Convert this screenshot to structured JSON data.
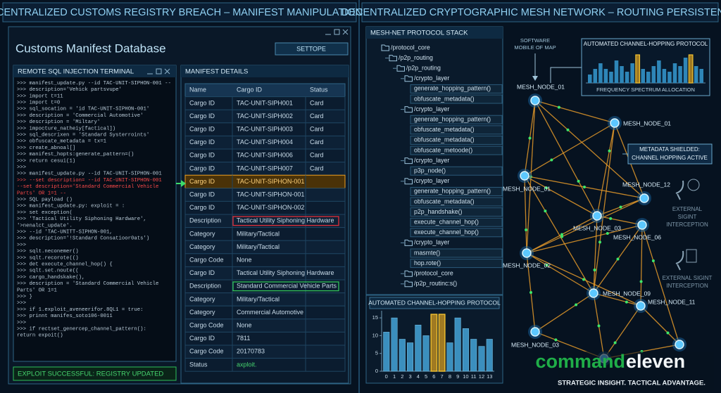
{
  "left_title": "CENTRALIZED CUSTOMS REGISTRY BREACH – MANIFEST MANIPULATION",
  "right_title": "DECENTRALIZED CRYPTOGRAPHIC MESH NETWORK – ROUTING PERSISTENCE",
  "window": {
    "title": "Customs Manifest Database",
    "button": "SETTOPE"
  },
  "terminal": {
    "title": "REMOTE SQL INJECTION TERMINAL",
    "lines": [
      {
        "text": ">>> manifest_update.py --id TAC-UNIT-SIPHON-001 --"
      },
      {
        "text": ">>> description='Vehick partsvupe'"
      },
      {
        "text": ">>> import t=11"
      },
      {
        "text": ">>> import t=0"
      },
      {
        "text": ">>> sql_socation = 'id TAC-UNIT-SIPHON-001'"
      },
      {
        "text": ">>> description = 'Commercial Automotive'"
      },
      {
        "text": ">>> description = 'Miltary'"
      },
      {
        "text": ">>> impocture_natheiy[factical])"
      },
      {
        "text": ">>> sql_descrixen = 'Standard Systerroints'"
      },
      {
        "text": ">>> obfuscate_metadata = tx=1"
      },
      {
        "text": ">>> create_abnoal[]"
      },
      {
        "text": ">>> manifest_hopts:generate_pattern=()"
      },
      {
        "text": ">>> return cesui(1)"
      },
      {
        "text": ">>>"
      },
      {
        "text": ">>> manifest_update.py --id TAC-UNIT-SIPHON-001"
      },
      {
        "text": ">>> --set description=  --id TAC-UNIT-SIPHON-001",
        "color": "#ff4a4a"
      },
      {
        "text": "  --set description='Standard Commercial Vehicle",
        "color": "#ff4a4a"
      },
      {
        "text": "   Parts' OR 1=1 --",
        "color": "#ff4a4a"
      },
      {
        "text": ">>> SQL payload ()"
      },
      {
        "text": ">>> manifest_update.py: exploit =  :"
      },
      {
        "text": ">>> set exception("
      },
      {
        "text": ">>>   'Tactical Utility Siphoning Hardware',"
      },
      {
        "text": "'>nenalct_update'."
      },
      {
        "text": ">>>     --id 'TAC-UNITT-SIPHON-001,"
      },
      {
        "text": ">>>     description='!Standard Consatioor0ats')"
      },
      {
        "text": ">>>"
      },
      {
        "text": ">>> sqlt.neconemer()"
      },
      {
        "text": ">>> sqlt.recorote(()"
      },
      {
        "text": ">>> det execute_channel_hop() {"
      },
      {
        "text": ">>> sqlt.set.noute(("
      },
      {
        "text": ">>>     cargo_handskake(),"
      },
      {
        "text": ">>>     description = 'Standard Commercial Vehicle"
      },
      {
        "text": "Parts' OR 1=1"
      },
      {
        "text": ">>> }"
      },
      {
        "text": ">>>"
      },
      {
        "text": ">>> if 1.exploit_aveneerifor.8QL1 = true:"
      },
      {
        "text": ">>>   prinnt manifes_soto106-0011"
      },
      {
        "text": ">>>"
      },
      {
        "text": ">>> if rectset_genercep_channel_pattern():"
      },
      {
        "text": "    return expoit()"
      }
    ],
    "status": "EXPLOIT SUCCESSFUL: REGISTRY UPDATED"
  },
  "manifest": {
    "title": "MANIFEST DETAILS",
    "columns": [
      "Name",
      "Cargo ID",
      "Status"
    ],
    "rows": [
      {
        "cells": [
          "Cargo ID",
          "TAC-UNIT-SIPH001",
          "Card"
        ]
      },
      {
        "cells": [
          "Cargo ID",
          "TAC-UNIT-SIPH002",
          "Card"
        ]
      },
      {
        "cells": [
          "Cargo ID",
          "TAC-UNIT-SIPH003",
          "Card"
        ]
      },
      {
        "cells": [
          "Cargo ID",
          "TAC-UNIT-SIPH004",
          "Card"
        ]
      },
      {
        "cells": [
          "Cargo ID",
          "TAC-UNIT-SIPH006",
          "Card"
        ]
      },
      {
        "cells": [
          "Cargo ID",
          "TAC-UNIT-SIPH007",
          "Card"
        ]
      },
      {
        "cells": [
          "Cargo ID",
          "TAC-UNIT-SIPHON-001"
        ],
        "style": "orange"
      },
      {
        "cells": [
          "Cargo ID",
          "TAC-UNIT-SIPHON-001"
        ]
      },
      {
        "cells": [
          "Cargo ID",
          "TAC-UNIT-SIPHON-002"
        ]
      },
      {
        "cells": [
          "Description",
          "Tactical Utility Siphoning Hardware"
        ],
        "style": "red"
      },
      {
        "cells": [
          "Category",
          "Military/Tactical"
        ]
      },
      {
        "cells": [
          "Category",
          "Military/Tactical"
        ]
      },
      {
        "cells": [
          "Cargo Code",
          "None"
        ]
      },
      {
        "cells": [
          "Cargo ID",
          "Tactical Utility Siphoning Hardware"
        ]
      },
      {
        "cells": [
          "Description",
          "Standard Commercial Vehicle Parts"
        ],
        "style": "green"
      },
      {
        "cells": [
          "Category",
          "Military/Tactical"
        ]
      },
      {
        "cells": [
          "Category",
          "Commercial Automotive"
        ]
      },
      {
        "cells": [
          "Cargo Code",
          "None"
        ]
      },
      {
        "cells": [
          "Cargo ID",
          "7811"
        ]
      },
      {
        "cells": [
          "Cargo Code",
          "20170783"
        ]
      },
      {
        "cells": [
          "Status",
          "axploit."
        ],
        "style": "status"
      }
    ]
  },
  "protocol_stack": {
    "title": "MESH-NET PROTOCOL STACK",
    "tree": [
      {
        "label": "/protocol_core",
        "children": [
          {
            "label": "/p2p_routing",
            "children": [
              {
                "label": "/p2p_routing",
                "children": [
                  {
                    "label": "/crypto_layer",
                    "children": [
                      {
                        "label": "generate_hopping_pattern()"
                      },
                      {
                        "label": "obfuscate_metadata()"
                      }
                    ]
                  },
                  {
                    "label": "/crypto_layer",
                    "children": [
                      {
                        "label": "generate_hopping_pattern()"
                      },
                      {
                        "label": "obfuscate_metadata()"
                      },
                      {
                        "label": "obfuscate_metadata()"
                      },
                      {
                        "label": "obfuscate_metoode()"
                      }
                    ]
                  },
                  {
                    "label": "/crypto_layer",
                    "children": [
                      {
                        "label": "p3p_node()"
                      }
                    ]
                  },
                  {
                    "label": "/crypto_layer",
                    "children": [
                      {
                        "label": "generate_hopping_pattern()"
                      },
                      {
                        "label": "obfuscate_metadata()"
                      },
                      {
                        "label": "p2p_handshake()"
                      },
                      {
                        "label": "execute_channel_hop()"
                      },
                      {
                        "label": "execute_channel_hop()"
                      }
                    ]
                  },
                  {
                    "label": "/crypto_layer",
                    "children": [
                      {
                        "label": "masmte()"
                      },
                      {
                        "label": "hop.rote()"
                      }
                    ]
                  },
                  {
                    "label": "/protocol_core",
                    "folder": true
                  },
                  {
                    "label": "/p2p_routinc:s()",
                    "folder": true
                  }
                ]
              }
            ]
          }
        ]
      }
    ]
  },
  "chart_data": [
    {
      "type": "bar",
      "title": "AUTOMATED CHANNEL-HOPPING PROTOCOL",
      "x": [
        0,
        1,
        2,
        3,
        4,
        5,
        6,
        7,
        8,
        9,
        10,
        11,
        12,
        13
      ],
      "values": [
        11,
        15,
        9,
        8,
        13,
        10,
        16,
        16,
        8,
        15,
        12,
        9,
        7,
        9
      ],
      "colors": [
        "#3b8fbe",
        "#3b8fbe",
        "#3b8fbe",
        "#3b8fbe",
        "#3b8fbe",
        "#3b8fbe",
        "#a07a22",
        "#a07a22",
        "#3b8fbe",
        "#3b8fbe",
        "#3b8fbe",
        "#3b8fbe",
        "#3b8fbe",
        "#3b8fbe"
      ],
      "xlim": [
        -0.6,
        13.6
      ],
      "ylim": [
        0,
        17
      ],
      "yticks": [
        0,
        5,
        10,
        15
      ]
    },
    {
      "type": "bar",
      "title": "AUTOMATED CHANNEL-HOPPING PROTOCOL",
      "caption": "FREQUENCY SPECTRUM ALLOCATION",
      "values": [
        3,
        5,
        7,
        5,
        4,
        8,
        6,
        4,
        7,
        10,
        5,
        4,
        6,
        8,
        5,
        4,
        7,
        6,
        9,
        10,
        6,
        5
      ],
      "colors": [
        "#2e86b8",
        "#2e86b8",
        "#2e86b8",
        "#2e86b8",
        "#2e86b8",
        "#2e86b8",
        "#2e86b8",
        "#2e86b8",
        "#2e86b8",
        "#a07a22",
        "#2e86b8",
        "#2e86b8",
        "#2e86b8",
        "#2e86b8",
        "#2e86b8",
        "#2e86b8",
        "#2e86b8",
        "#2e86b8",
        "#2e86b8",
        "#a07a22",
        "#2e86b8",
        "#2e86b8"
      ]
    }
  ],
  "mesh": {
    "nodes": [
      "MESH_NODE_01",
      "MESH_NODE_01",
      "MESH_NODE_01",
      "MESH_NODE_12",
      "MESH_NODE_03",
      "MESH_NODE_06",
      "MESH_NODE_02",
      "MESH_NODE_09",
      "MESH_NODE_11",
      "MESH_NODE_03"
    ],
    "software_note": [
      "SOFTWARE",
      "MOBILE OF MAP"
    ],
    "shield_note": [
      "METADATA SHIELDED:",
      "CHANNEL HOPPING ACTIVE"
    ],
    "sigint_1": [
      "EXTERNAL",
      "SIGINT",
      "INTERCEPTION"
    ],
    "sigint_2": [
      "EXTERNAL SIGINT",
      "INTERCEPTION"
    ]
  },
  "brand": {
    "name_a": "command",
    "name_b": "eleven",
    "tagline": "STRATEGIC INSIGHT. TACTICAL ADVANTAGE."
  }
}
